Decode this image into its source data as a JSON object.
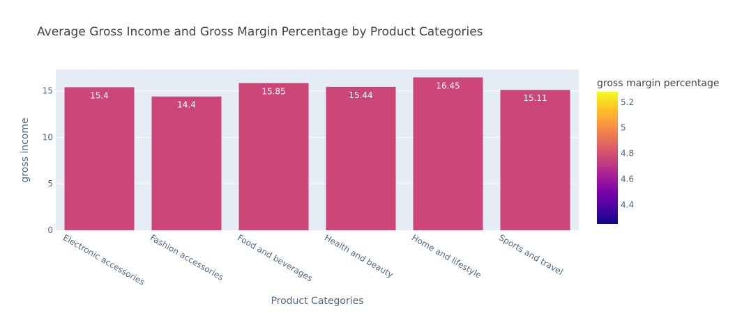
{
  "chart_data": {
    "type": "bar",
    "title": "Average Gross Income and Gross Margin Percentage by Product Categories",
    "xlabel": "Product Categories",
    "ylabel": "gross income",
    "categories": [
      "Electronic accessories",
      "Fashion accessories",
      "Food and beverages",
      "Health and beauty",
      "Home and lifestyle",
      "Sports and travel"
    ],
    "values": [
      15.4,
      14.4,
      15.85,
      15.44,
      16.45,
      15.11
    ],
    "value_labels": [
      "15.4",
      "14.4",
      "15.85",
      "15.44",
      "16.45",
      "15.11"
    ],
    "ylim": [
      0,
      17.3
    ],
    "yticks": [
      0,
      5,
      10,
      15
    ],
    "ytick_labels": [
      "0",
      "5",
      "10",
      "15"
    ],
    "grid": true,
    "plot_background": "#e5ecf6",
    "bar_color": "#cc4778",
    "colorbar": {
      "title": "gross margin percentage",
      "range": [
        4.25,
        5.28
      ],
      "ticks": [
        4.4,
        4.6,
        4.8,
        5.0,
        5.2
      ],
      "tick_labels": [
        "4.4",
        "4.6",
        "4.8",
        "5",
        "5.2"
      ],
      "colorscale": [
        "#0d0887",
        "#46039f",
        "#7201a8",
        "#9c179e",
        "#bd3786",
        "#d8576b",
        "#ed7953",
        "#fb9f3a",
        "#fdca26",
        "#f0f921"
      ]
    }
  }
}
